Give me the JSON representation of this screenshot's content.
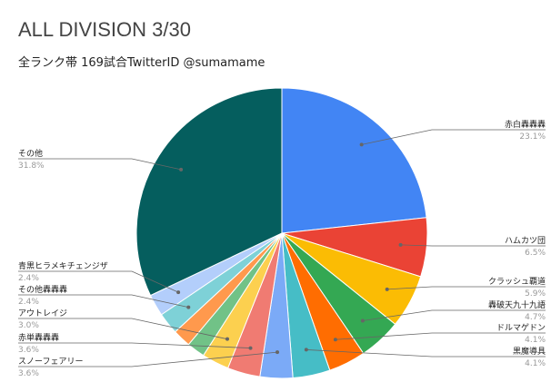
{
  "chart_data": {
    "type": "pie",
    "title": "ALL DIVISION 3/30",
    "subtitle": "全ランク帯 169試合TwitterID @sumamame",
    "start": "top",
    "direction": "clockwise",
    "legend": "leader-line labels",
    "slices": [
      {
        "name": "赤白轟轟轟",
        "value": 23.1,
        "label": "23.1%",
        "color": "#4285f4"
      },
      {
        "name": "ハムカツ団",
        "value": 6.5,
        "label": "6.5%",
        "color": "#ea4335"
      },
      {
        "name": "クラッシュ覇道",
        "value": 5.9,
        "label": "5.9%",
        "color": "#fbbc04"
      },
      {
        "name": "轟破天九十九語",
        "value": 4.7,
        "label": "4.7%",
        "color": "#34a853"
      },
      {
        "name": "ドルマゲドン",
        "value": 4.1,
        "label": "4.1%",
        "color": "#ff6d01"
      },
      {
        "name": "黒魔導具",
        "value": 4.1,
        "label": "4.1%",
        "color": "#46bdc6"
      },
      {
        "name": "スノーフェアリー",
        "value": 3.6,
        "label": "3.6%",
        "color": "#7baaf7"
      },
      {
        "name": "赤単轟轟轟",
        "value": 3.6,
        "label": "3.6%",
        "color": "#f07b72"
      },
      {
        "name": "アウトレイジ",
        "value": 3.0,
        "label": "3.0%",
        "color": "#fcd04f"
      },
      {
        "name": "",
        "value": 2.0,
        "label": "",
        "color": "#71c287"
      },
      {
        "name": "",
        "value": 2.0,
        "label": "",
        "color": "#ff994d"
      },
      {
        "name": "その他轟轟轟",
        "value": 2.4,
        "label": "2.4%",
        "color": "#7ed1d7"
      },
      {
        "name": "青黒ヒラメキチェンジザ",
        "value": 2.4,
        "label": "2.4%",
        "color": "#b3cefb"
      },
      {
        "name": "その他",
        "value": 31.8,
        "label": "31.8%",
        "color": "#055e5e"
      }
    ]
  }
}
